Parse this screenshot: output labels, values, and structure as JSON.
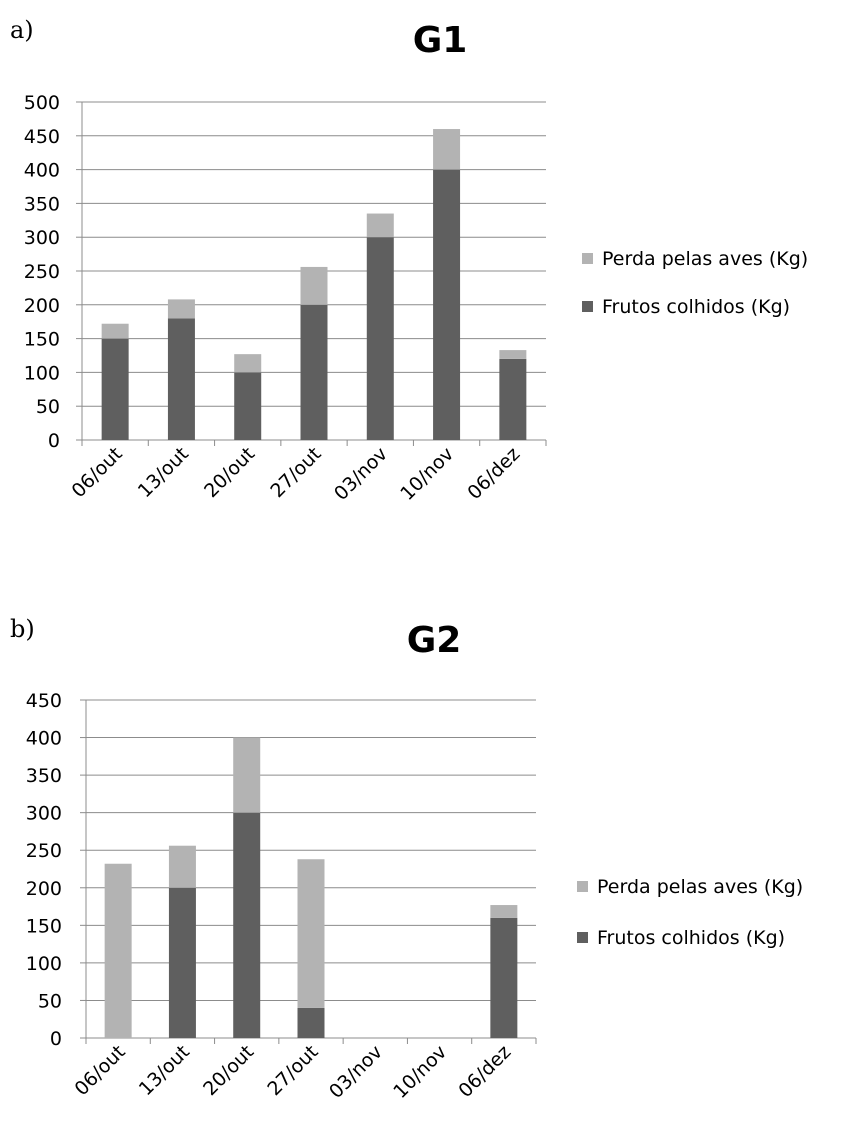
{
  "chart_data": [
    {
      "type": "bar",
      "stacked": true,
      "panel_label": "a)",
      "title": "G1",
      "categories": [
        "06/out",
        "13/out",
        "20/out",
        "27/out",
        "03/nov",
        "10/nov",
        "06/dez"
      ],
      "ylim": [
        0,
        500
      ],
      "yticks": [
        0,
        50,
        100,
        150,
        200,
        250,
        300,
        350,
        400,
        450,
        500
      ],
      "grid": true,
      "legend_position": "right",
      "series": [
        {
          "name": "Frutos colhidos (Kg)",
          "color": "#5f5f5f",
          "values": [
            150,
            180,
            100,
            200,
            300,
            400,
            120
          ]
        },
        {
          "name": "Perda pelas aves (Kg)",
          "color": "#b3b3b3",
          "values": [
            22,
            28,
            27,
            56,
            35,
            60,
            13
          ]
        }
      ]
    },
    {
      "type": "bar",
      "stacked": true,
      "panel_label": "b)",
      "title": "G2",
      "categories": [
        "06/out",
        "13/out",
        "20/out",
        "27/out",
        "03/nov",
        "10/nov",
        "06/dez"
      ],
      "ylim": [
        0,
        450
      ],
      "yticks": [
        0,
        50,
        100,
        150,
        200,
        250,
        300,
        350,
        400,
        450
      ],
      "grid": true,
      "legend_position": "right",
      "series": [
        {
          "name": "Frutos colhidos (Kg)",
          "color": "#5f5f5f",
          "values": [
            0,
            200,
            300,
            40,
            0,
            0,
            160
          ]
        },
        {
          "name": "Perda pelas aves (Kg)",
          "color": "#b3b3b3",
          "values": [
            232,
            56,
            100,
            198,
            0,
            0,
            17
          ]
        }
      ]
    }
  ]
}
